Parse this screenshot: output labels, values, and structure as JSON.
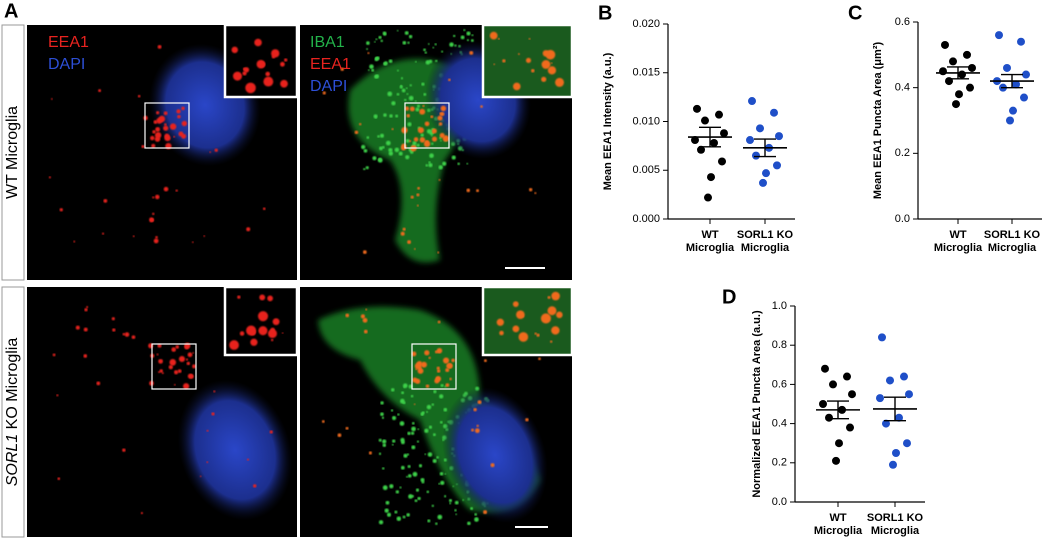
{
  "panel_a": {
    "panel_label": "A",
    "rows": [
      {
        "label": "WT Microglia"
      },
      {
        "label_italic": "SORL1",
        "label": "KO Microglia"
      }
    ],
    "left_channels": [
      {
        "label": "EEA1",
        "color": "#e8231f"
      },
      {
        "label": "DAPI",
        "color": "#2d4fd6"
      }
    ],
    "right_channels": [
      {
        "label": "IBA1",
        "color": "#23b24a"
      },
      {
        "label": "EEA1",
        "color": "#e8231f"
      },
      {
        "label": "DAPI",
        "color": "#2d4fd6"
      }
    ]
  },
  "chart_data": [
    {
      "type": "scatter",
      "panel_label": "B",
      "y_label": "Mean EEA1 Intensity (a.u.)",
      "categories": [
        "WT Microglia",
        "SORL1 KO Microglia"
      ],
      "series": [
        {
          "color": "#000000",
          "values": [
            0.0113,
            0.0107,
            0.0101,
            0.0088,
            0.0081,
            0.0078,
            0.0071,
            0.0059,
            0.0043,
            0.0022
          ],
          "mean": 0.0084,
          "sem": 0.001
        },
        {
          "color": "#1f4fc8",
          "values": [
            0.0121,
            0.0109,
            0.0093,
            0.0085,
            0.0081,
            0.0073,
            0.0065,
            0.0055,
            0.0047,
            0.0037
          ],
          "mean": 0.0073,
          "sem": 0.0009
        }
      ],
      "ylim": [
        0,
        0.02
      ],
      "yticks": [
        {
          "value": 0,
          "label": "0.000"
        },
        0.005,
        {
          "value": 0.01,
          "label": "0.010"
        },
        0.015,
        {
          "value": 0.02,
          "label": "0.020"
        }
      ]
    },
    {
      "type": "scatter",
      "panel_label": "C",
      "y_label": "Mean EEA1 Puncta Area (μm²)",
      "categories": [
        "WT Microglia",
        "SORL1 KO Microglia"
      ],
      "series": [
        {
          "color": "#000000",
          "values": [
            0.53,
            0.5,
            0.48,
            0.46,
            0.45,
            0.44,
            0.42,
            0.4,
            0.38,
            0.35
          ],
          "mean": 0.445,
          "sem": 0.018
        },
        {
          "color": "#1f4fc8",
          "values": [
            0.56,
            0.54,
            0.46,
            0.44,
            0.42,
            0.41,
            0.4,
            0.37,
            0.33,
            0.3
          ],
          "mean": 0.42,
          "sem": 0.02
        }
      ],
      "ylim": [
        0,
        0.6
      ],
      "yticks": [
        {
          "value": 0,
          "label": "0.0"
        },
        0.2,
        0.4,
        0.6
      ]
    },
    {
      "type": "scatter",
      "panel_label": "D",
      "y_label": "Normalized EEA1 Puncta Area (a.u.)",
      "categories": [
        "WT Microglia",
        "SORL1 KO Microglia"
      ],
      "series": [
        {
          "color": "#000000",
          "values": [
            0.68,
            0.64,
            0.6,
            0.55,
            0.5,
            0.47,
            0.43,
            0.38,
            0.3,
            0.21
          ],
          "mean": 0.47,
          "sem": 0.045
        },
        {
          "color": "#1f4fc8",
          "values": [
            0.84,
            0.64,
            0.62,
            0.55,
            0.53,
            0.43,
            0.4,
            0.3,
            0.25,
            0.19
          ],
          "mean": 0.475,
          "sem": 0.06
        }
      ],
      "ylim": [
        0,
        1
      ],
      "yticks": [
        {
          "value": 0,
          "label": "0.0"
        },
        0.2,
        0.4,
        0.6,
        0.8,
        {
          "value": 1,
          "label": "1.0"
        }
      ]
    }
  ]
}
